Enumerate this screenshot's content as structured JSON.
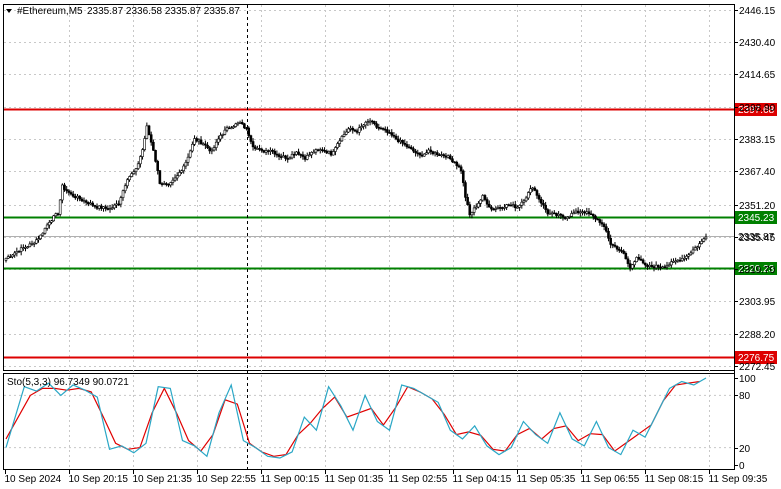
{
  "header": {
    "symbol": "#Ethereum,M5",
    "ohlc": "2335.87 2336.58 2335.87 2335.87"
  },
  "oscillator": {
    "label": "Sto(5,3,3) 96.7349 90.0721",
    "ticks": [
      "100",
      "80",
      "20",
      "0"
    ]
  },
  "chart_data": {
    "type": "candlestick",
    "y_ticks": [
      "2446.15",
      "2430.40",
      "2414.65",
      "2398.90",
      "2383.15",
      "2367.40",
      "2351.20",
      "2335.45",
      "2319.70",
      "2303.95",
      "2288.20",
      "2272.45"
    ],
    "ylim": [
      2270.5,
      2448.5
    ],
    "x_ticks": [
      "10 Sep 2024",
      "10 Sep 20:15",
      "10 Sep 21:35",
      "10 Sep 22:55",
      "11 Sep 00:15",
      "11 Sep 01:35",
      "11 Sep 02:55",
      "11 Sep 04:15",
      "11 Sep 05:35",
      "11 Sep 06:55",
      "11 Sep 08:15",
      "11 Sep 09:35"
    ],
    "levels": [
      {
        "label": "2397.68",
        "value": 2397.68,
        "color": "#dd0000"
      },
      {
        "label": "2345.23",
        "value": 2345.23,
        "color": "#008000"
      },
      {
        "label": "2320.23",
        "value": 2320.23,
        "color": "#008000"
      },
      {
        "label": "2276.75",
        "value": 2276.75,
        "color": "#dd0000"
      }
    ],
    "current_price": {
      "label": "2335.87",
      "value": 2335.87
    },
    "anchors": [
      [
        0,
        2325
      ],
      [
        6,
        2329
      ],
      [
        12,
        2332
      ],
      [
        16,
        2336
      ],
      [
        20,
        2343
      ],
      [
        24,
        2347
      ],
      [
        26,
        2360
      ],
      [
        30,
        2356
      ],
      [
        36,
        2353
      ],
      [
        42,
        2350
      ],
      [
        48,
        2349
      ],
      [
        52,
        2352
      ],
      [
        56,
        2364
      ],
      [
        60,
        2368
      ],
      [
        63,
        2378
      ],
      [
        65,
        2389
      ],
      [
        68,
        2378
      ],
      [
        71,
        2362
      ],
      [
        75,
        2360
      ],
      [
        79,
        2365
      ],
      [
        83,
        2372
      ],
      [
        87,
        2383
      ],
      [
        91,
        2381
      ],
      [
        95,
        2377
      ],
      [
        99,
        2385
      ],
      [
        103,
        2389
      ],
      [
        108,
        2391
      ],
      [
        111,
        2388
      ],
      [
        114,
        2380
      ],
      [
        118,
        2377
      ],
      [
        122,
        2378
      ],
      [
        126,
        2375
      ],
      [
        130,
        2374
      ],
      [
        134,
        2377
      ],
      [
        138,
        2374
      ],
      [
        142,
        2377
      ],
      [
        146,
        2378
      ],
      [
        150,
        2376
      ],
      [
        154,
        2383
      ],
      [
        158,
        2388
      ],
      [
        162,
        2387
      ],
      [
        165,
        2390
      ],
      [
        168,
        2392
      ],
      [
        171,
        2389
      ],
      [
        175,
        2387
      ],
      [
        179,
        2384
      ],
      [
        183,
        2381
      ],
      [
        187,
        2378
      ],
      [
        191,
        2375
      ],
      [
        195,
        2377
      ],
      [
        199,
        2376
      ],
      [
        203,
        2375
      ],
      [
        207,
        2372
      ],
      [
        210,
        2368
      ],
      [
        212,
        2355
      ],
      [
        214,
        2346
      ],
      [
        216,
        2349
      ],
      [
        220,
        2355
      ],
      [
        224,
        2349
      ],
      [
        228,
        2350
      ],
      [
        232,
        2351
      ],
      [
        236,
        2350
      ],
      [
        240,
        2355
      ],
      [
        243,
        2360
      ],
      [
        246,
        2354
      ],
      [
        250,
        2347
      ],
      [
        254,
        2346
      ],
      [
        258,
        2345
      ],
      [
        262,
        2347
      ],
      [
        266,
        2348
      ],
      [
        270,
        2346
      ],
      [
        274,
        2343
      ],
      [
        277,
        2338
      ],
      [
        279,
        2332
      ],
      [
        282,
        2330
      ],
      [
        285,
        2327
      ],
      [
        288,
        2320
      ],
      [
        291,
        2326
      ],
      [
        295,
        2321
      ],
      [
        298,
        2321
      ],
      [
        302,
        2321
      ],
      [
        306,
        2322
      ],
      [
        310,
        2324
      ],
      [
        314,
        2326
      ],
      [
        318,
        2330
      ],
      [
        321,
        2333
      ],
      [
        323,
        2336
      ]
    ],
    "stochastic": {
      "k": [
        [
          0,
          20
        ],
        [
          3,
          90
        ],
        [
          5,
          85
        ],
        [
          7,
          94
        ],
        [
          9,
          80
        ],
        [
          11,
          92
        ],
        [
          13,
          86
        ],
        [
          15,
          78
        ],
        [
          17,
          18
        ],
        [
          19,
          22
        ],
        [
          21,
          14
        ],
        [
          23,
          25
        ],
        [
          25,
          90
        ],
        [
          27,
          88
        ],
        [
          29,
          28
        ],
        [
          31,
          22
        ],
        [
          33,
          10
        ],
        [
          35,
          60
        ],
        [
          37,
          92
        ],
        [
          39,
          28
        ],
        [
          41,
          20
        ],
        [
          43,
          10
        ],
        [
          45,
          8
        ],
        [
          47,
          15
        ],
        [
          49,
          55
        ],
        [
          51,
          40
        ],
        [
          53,
          90
        ],
        [
          55,
          68
        ],
        [
          57,
          40
        ],
        [
          59,
          80
        ],
        [
          61,
          50
        ],
        [
          63,
          40
        ],
        [
          65,
          92
        ],
        [
          67,
          88
        ],
        [
          69,
          80
        ],
        [
          71,
          72
        ],
        [
          73,
          40
        ],
        [
          75,
          30
        ],
        [
          77,
          45
        ],
        [
          79,
          22
        ],
        [
          81,
          12
        ],
        [
          83,
          20
        ],
        [
          85,
          50
        ],
        [
          87,
          35
        ],
        [
          89,
          25
        ],
        [
          91,
          60
        ],
        [
          93,
          30
        ],
        [
          95,
          22
        ],
        [
          97,
          50
        ],
        [
          99,
          20
        ],
        [
          101,
          12
        ],
        [
          103,
          40
        ],
        [
          105,
          32
        ],
        [
          107,
          60
        ],
        [
          109,
          88
        ],
        [
          111,
          96
        ],
        [
          113,
          92
        ],
        [
          115,
          100
        ]
      ],
      "d": [
        [
          0,
          30
        ],
        [
          4,
          80
        ],
        [
          6,
          88
        ],
        [
          8,
          88
        ],
        [
          10,
          86
        ],
        [
          12,
          88
        ],
        [
          14,
          84
        ],
        [
          16,
          55
        ],
        [
          18,
          25
        ],
        [
          20,
          18
        ],
        [
          22,
          20
        ],
        [
          24,
          60
        ],
        [
          26,
          88
        ],
        [
          28,
          60
        ],
        [
          30,
          28
        ],
        [
          32,
          16
        ],
        [
          34,
          35
        ],
        [
          36,
          75
        ],
        [
          38,
          70
        ],
        [
          40,
          25
        ],
        [
          42,
          15
        ],
        [
          44,
          10
        ],
        [
          46,
          12
        ],
        [
          48,
          35
        ],
        [
          50,
          48
        ],
        [
          52,
          65
        ],
        [
          54,
          78
        ],
        [
          56,
          55
        ],
        [
          58,
          60
        ],
        [
          60,
          65
        ],
        [
          62,
          46
        ],
        [
          64,
          66
        ],
        [
          66,
          90
        ],
        [
          68,
          84
        ],
        [
          70,
          76
        ],
        [
          72,
          58
        ],
        [
          74,
          35
        ],
        [
          76,
          38
        ],
        [
          78,
          34
        ],
        [
          80,
          18
        ],
        [
          82,
          16
        ],
        [
          84,
          35
        ],
        [
          86,
          42
        ],
        [
          88,
          30
        ],
        [
          90,
          42
        ],
        [
          92,
          45
        ],
        [
          94,
          28
        ],
        [
          96,
          36
        ],
        [
          98,
          35
        ],
        [
          100,
          16
        ],
        [
          102,
          26
        ],
        [
          104,
          36
        ],
        [
          106,
          46
        ],
        [
          108,
          74
        ],
        [
          110,
          92
        ],
        [
          112,
          94
        ],
        [
          114,
          96
        ]
      ]
    }
  }
}
